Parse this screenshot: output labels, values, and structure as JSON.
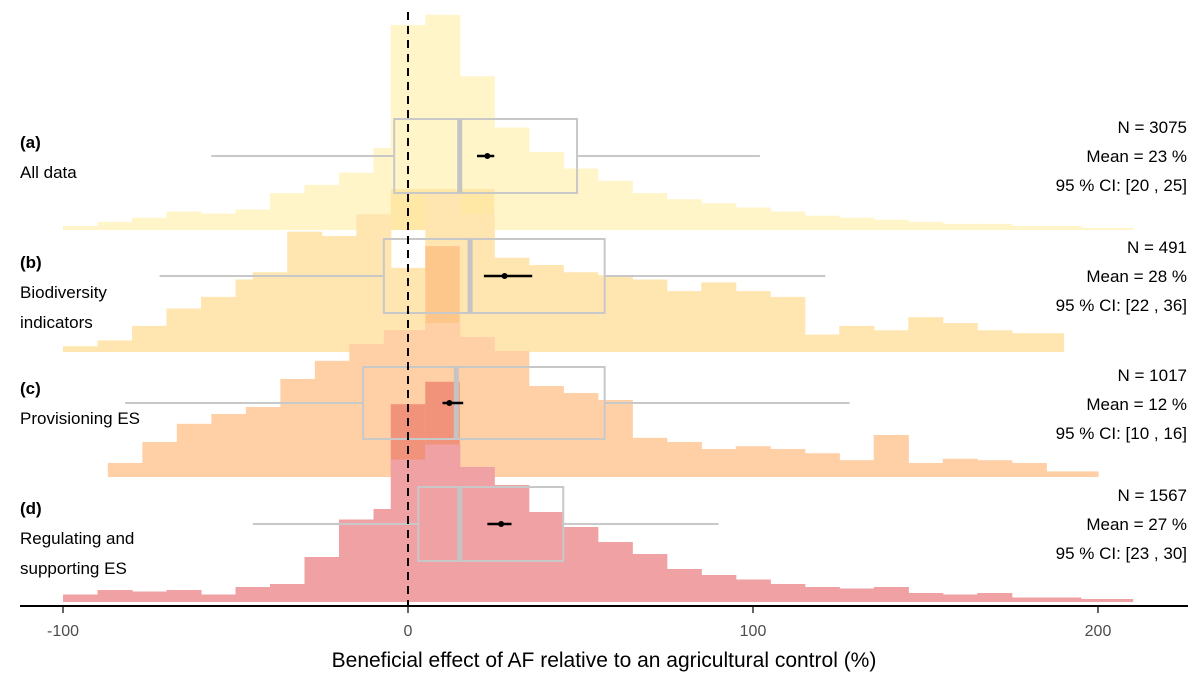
{
  "chart_data": {
    "type": "histogram",
    "xlabel": "Beneficial effect of AF relative to an agricultural control (%)",
    "xlim": [
      -100,
      225
    ],
    "x_ticks": [
      -100,
      0,
      100,
      200
    ],
    "reference_line": 0,
    "bin_width": 10,
    "panels": [
      {
        "id": "a",
        "tag": "(a)",
        "label_lines": [
          "All data"
        ],
        "color": "#fff5c8",
        "center_color": "#ffe7a2",
        "stats": {
          "n": "N = 3075",
          "mean": "Mean = 23 %",
          "ci": "95 % CI: [20 , 25]"
        },
        "mean": 23,
        "ci": [
          20,
          25
        ],
        "box": {
          "q1": -4,
          "median": 15,
          "q3": 49,
          "whisker_low": -57,
          "whisker_high": 102
        },
        "center_bins": [
          [
            -5,
            25,
            0.2
          ]
        ],
        "bins": [
          [
            -100,
            -90,
            0.02
          ],
          [
            -90,
            -80,
            0.04
          ],
          [
            -80,
            -70,
            0.06
          ],
          [
            -70,
            -60,
            0.09
          ],
          [
            -60,
            -50,
            0.08
          ],
          [
            -50,
            -40,
            0.1
          ],
          [
            -40,
            -30,
            0.18
          ],
          [
            -30,
            -20,
            0.22
          ],
          [
            -20,
            -10,
            0.28
          ],
          [
            -10,
            -5,
            0.4
          ],
          [
            -5,
            5,
            1.0
          ],
          [
            5,
            15,
            1.05
          ],
          [
            15,
            25,
            0.75
          ],
          [
            25,
            35,
            0.5
          ],
          [
            35,
            45,
            0.38
          ],
          [
            45,
            55,
            0.3
          ],
          [
            55,
            65,
            0.24
          ],
          [
            65,
            75,
            0.18
          ],
          [
            75,
            85,
            0.15
          ],
          [
            85,
            95,
            0.13
          ],
          [
            95,
            105,
            0.11
          ],
          [
            105,
            115,
            0.09
          ],
          [
            115,
            125,
            0.07
          ],
          [
            125,
            135,
            0.06
          ],
          [
            135,
            145,
            0.05
          ],
          [
            145,
            155,
            0.04
          ],
          [
            155,
            165,
            0.03
          ],
          [
            165,
            175,
            0.03
          ],
          [
            175,
            185,
            0.02
          ],
          [
            185,
            195,
            0.02
          ],
          [
            195,
            210,
            0.01
          ]
        ]
      },
      {
        "id": "b",
        "tag": "(b)",
        "label_lines": [
          "Biodiversity",
          "indicators"
        ],
        "color": "#ffe6b0",
        "center_color": "#fdc388",
        "stats": {
          "n": "N = 491",
          "mean": "Mean = 28 %",
          "ci": "95 % CI: [22 , 36]"
        },
        "mean": 28,
        "ci": [
          22,
          36
        ],
        "box": {
          "q1": -7,
          "median": 18,
          "q3": 57,
          "whisker_low": -72,
          "whisker_high": 121
        },
        "center_bins": [
          [
            5,
            15,
            0.73
          ]
        ],
        "bins": [
          [
            -100,
            -90,
            0.04
          ],
          [
            -90,
            -80,
            0.08
          ],
          [
            -80,
            -70,
            0.18
          ],
          [
            -70,
            -60,
            0.3
          ],
          [
            -60,
            -50,
            0.38
          ],
          [
            -50,
            -45,
            0.5
          ],
          [
            -45,
            -35,
            0.55
          ],
          [
            -35,
            -25,
            0.83
          ],
          [
            -25,
            -15,
            0.8
          ],
          [
            -15,
            -5,
            0.95
          ],
          [
            -5,
            5,
            0.58
          ],
          [
            5,
            15,
            1.1
          ],
          [
            15,
            25,
            0.95
          ],
          [
            25,
            35,
            0.65
          ],
          [
            35,
            45,
            0.6
          ],
          [
            45,
            55,
            0.55
          ],
          [
            55,
            65,
            0.53
          ],
          [
            65,
            75,
            0.5
          ],
          [
            75,
            85,
            0.42
          ],
          [
            85,
            95,
            0.48
          ],
          [
            95,
            105,
            0.42
          ],
          [
            105,
            115,
            0.38
          ],
          [
            115,
            125,
            0.12
          ],
          [
            125,
            135,
            0.18
          ],
          [
            135,
            145,
            0.15
          ],
          [
            145,
            155,
            0.24
          ],
          [
            155,
            165,
            0.2
          ],
          [
            165,
            175,
            0.15
          ],
          [
            175,
            190,
            0.13
          ]
        ]
      },
      {
        "id": "c",
        "tag": "(c)",
        "label_lines": [
          "Provisioning ES"
        ],
        "color": "#ffcfa6",
        "center_color": "#f08c77",
        "stats": {
          "n": "N = 1017",
          "mean": "Mean = 12 %",
          "ci": "95 % CI: [10 , 16]"
        },
        "mean": 12,
        "ci": [
          10,
          16
        ],
        "box": {
          "q1": -13,
          "median": 14,
          "q3": 57,
          "whisker_low": -82,
          "whisker_high": 128
        },
        "center_bins": [
          [
            -5,
            5,
            0.52
          ],
          [
            5,
            15,
            0.68
          ]
        ],
        "bins": [
          [
            -87,
            -77,
            0.1
          ],
          [
            -77,
            -67,
            0.25
          ],
          [
            -67,
            -57,
            0.38
          ],
          [
            -57,
            -47,
            0.45
          ],
          [
            -47,
            -37,
            0.5
          ],
          [
            -37,
            -27,
            0.7
          ],
          [
            -27,
            -17,
            0.83
          ],
          [
            -17,
            -7,
            0.95
          ],
          [
            -7,
            5,
            1.05
          ],
          [
            5,
            15,
            1.1
          ],
          [
            15,
            25,
            1.0
          ],
          [
            25,
            35,
            0.9
          ],
          [
            35,
            45,
            0.65
          ],
          [
            45,
            55,
            0.6
          ],
          [
            55,
            65,
            0.55
          ],
          [
            65,
            75,
            0.28
          ],
          [
            75,
            85,
            0.25
          ],
          [
            85,
            95,
            0.2
          ],
          [
            95,
            105,
            0.22
          ],
          [
            105,
            115,
            0.2
          ],
          [
            115,
            125,
            0.17
          ],
          [
            125,
            135,
            0.12
          ],
          [
            135,
            145,
            0.3
          ],
          [
            145,
            155,
            0.1
          ],
          [
            155,
            165,
            0.13
          ],
          [
            165,
            175,
            0.12
          ],
          [
            175,
            185,
            0.1
          ],
          [
            185,
            200,
            0.04
          ]
        ]
      },
      {
        "id": "d",
        "tag": "(d)",
        "label_lines": [
          "Regulating and",
          "supporting ES"
        ],
        "color": "#f0a1a3",
        "center_color": "#f0a1a3",
        "stats": {
          "n": "N = 1567",
          "mean": "Mean = 27 %",
          "ci": "95 % CI: [23 , 30]"
        },
        "mean": 27,
        "ci": [
          23,
          30
        ],
        "box": {
          "q1": 3,
          "median": 15,
          "q3": 45,
          "whisker_low": -45,
          "whisker_high": 90
        },
        "center_bins": [],
        "bins": [
          [
            -100,
            -90,
            0.05
          ],
          [
            -90,
            -80,
            0.08
          ],
          [
            -80,
            -70,
            0.07
          ],
          [
            -70,
            -60,
            0.08
          ],
          [
            -60,
            -50,
            0.05
          ],
          [
            -50,
            -40,
            0.1
          ],
          [
            -40,
            -30,
            0.12
          ],
          [
            -30,
            -20,
            0.3
          ],
          [
            -20,
            -10,
            0.55
          ],
          [
            -10,
            -5,
            0.62
          ],
          [
            -5,
            5,
            0.95
          ],
          [
            5,
            15,
            1.05
          ],
          [
            15,
            25,
            0.9
          ],
          [
            25,
            35,
            0.78
          ],
          [
            35,
            45,
            0.6
          ],
          [
            45,
            55,
            0.5
          ],
          [
            55,
            65,
            0.4
          ],
          [
            65,
            75,
            0.32
          ],
          [
            75,
            85,
            0.22
          ],
          [
            85,
            95,
            0.18
          ],
          [
            95,
            105,
            0.15
          ],
          [
            105,
            115,
            0.12
          ],
          [
            115,
            125,
            0.1
          ],
          [
            125,
            135,
            0.09
          ],
          [
            135,
            145,
            0.1
          ],
          [
            145,
            155,
            0.06
          ],
          [
            155,
            165,
            0.05
          ],
          [
            165,
            175,
            0.06
          ],
          [
            175,
            185,
            0.03
          ],
          [
            185,
            195,
            0.03
          ],
          [
            195,
            210,
            0.02
          ]
        ]
      }
    ]
  }
}
